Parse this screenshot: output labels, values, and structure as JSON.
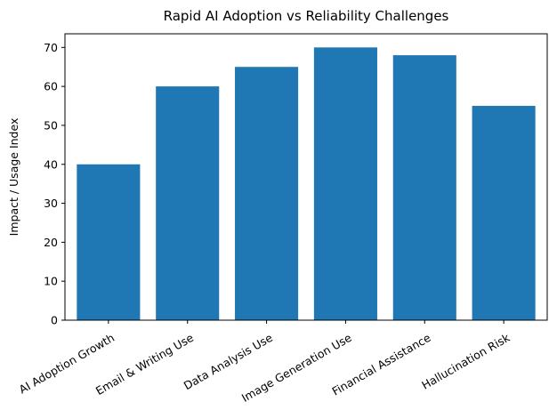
{
  "chart_data": {
    "type": "bar",
    "title": "Rapid AI Adoption vs Reliability Challenges",
    "xlabel": "",
    "ylabel": "Impact / Usage Index",
    "categories": [
      "AI Adoption Growth",
      "Email & Writing Use",
      "Data Analysis Use",
      "Image Generation Use",
      "Financial Assistance",
      "Hallucination Risk"
    ],
    "values": [
      40,
      60,
      65,
      70,
      68,
      55
    ],
    "ylim": [
      0,
      73.5
    ],
    "yticks": [
      0,
      10,
      20,
      30,
      40,
      50,
      60,
      70
    ],
    "bar_color": "#1f77b4",
    "grid": false,
    "legend": "none"
  }
}
